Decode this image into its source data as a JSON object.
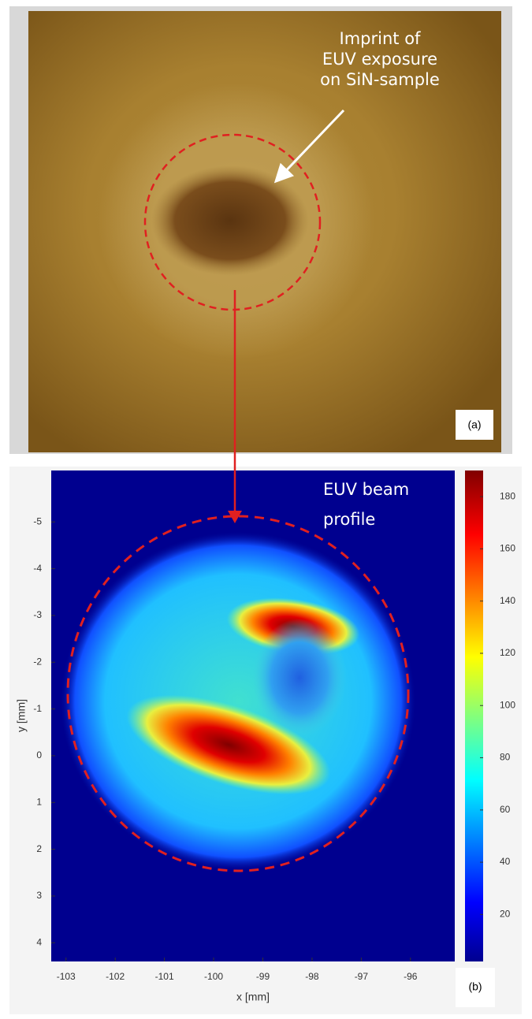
{
  "photo": {
    "annotation": [
      "Imprint of",
      "EUV exposure",
      "on SiN-sample"
    ],
    "panel_label": "(a)"
  },
  "beam_profile": {
    "annotation": [
      "EUV beam",
      "profile"
    ],
    "panel_label": "(b)",
    "x_label": "x [mm]",
    "y_label": "y [mm]",
    "xlim": [
      -103.3,
      -95.1
    ],
    "ylim": [
      -6.1,
      4.4
    ],
    "xticks": [
      -103,
      -102,
      -101,
      -100,
      -99,
      -98,
      -97,
      -96
    ],
    "yticks": [
      -5,
      -4,
      -3,
      -2,
      -1,
      0,
      1,
      2,
      3,
      4
    ],
    "colorbar": {
      "lim": [
        2,
        190
      ],
      "ticks": [
        20,
        40,
        60,
        80,
        100,
        120,
        140,
        160,
        180
      ]
    }
  }
}
